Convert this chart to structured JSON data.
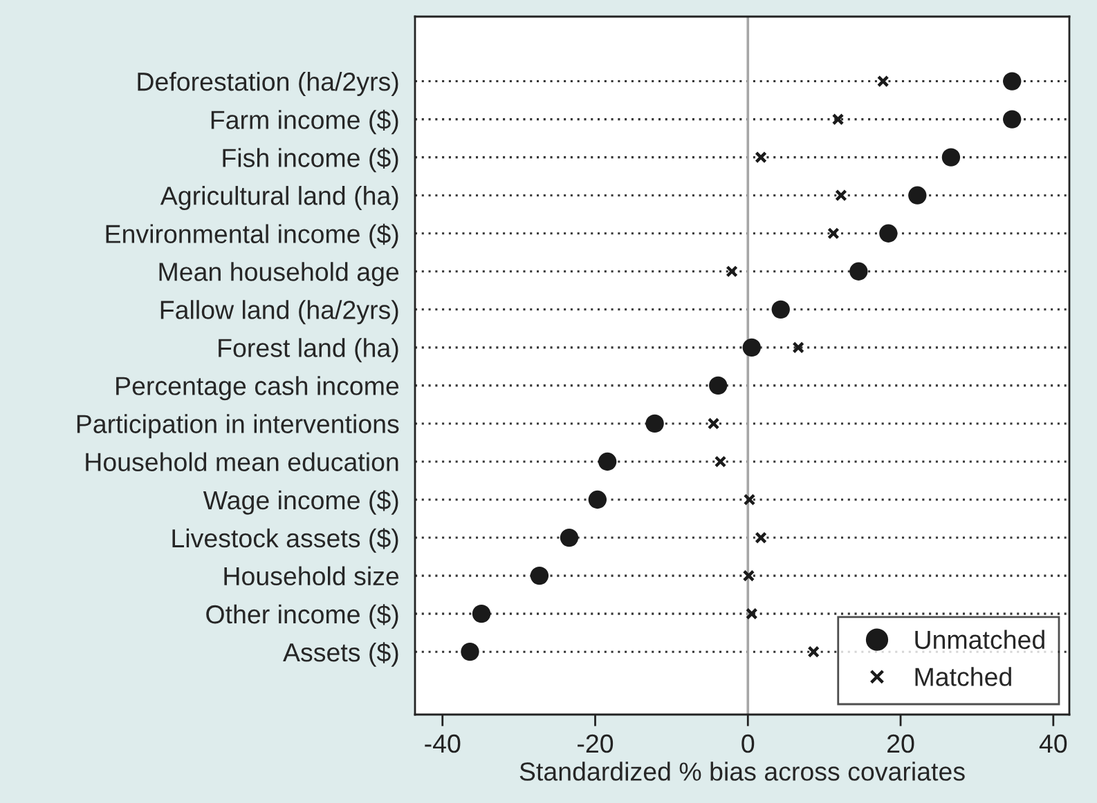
{
  "chart_data": {
    "type": "scatter",
    "orientation": "horizontal",
    "xlabel": "Standardized % bias across covariates",
    "categories": [
      "Deforestation (ha/2yrs)",
      "Farm income ($)",
      "Fish income ($)",
      "Agricultural land (ha)",
      "Environmental income ($)",
      "Mean household age",
      "Fallow land (ha/2yrs)",
      "Forest land (ha)",
      "Percentage cash income",
      "Participation in interventions",
      "Household mean education",
      "Wage income ($)",
      "Livestock assets ($)",
      "Household size",
      "Other income ($)",
      "Assets ($)"
    ],
    "series": [
      {
        "name": "Unmatched",
        "color": "#1a1a1a",
        "marker": "circle",
        "values": [
          34.6,
          34.6,
          26.6,
          22.2,
          18.4,
          14.5,
          4.3,
          0.5,
          -3.9,
          -12.2,
          -18.4,
          -19.7,
          -23.4,
          -27.3,
          -34.9,
          -36.4
        ]
      },
      {
        "name": "Matched",
        "color": "#1a1a1a",
        "marker": "cross",
        "values": [
          17.7,
          11.8,
          1.7,
          12.2,
          11.2,
          -2.1,
          null,
          6.6,
          null,
          -4.5,
          -3.6,
          0.2,
          1.7,
          0.1,
          0.5,
          8.6
        ]
      }
    ],
    "xlim": [
      -43.6,
      42.1
    ],
    "xticks": [
      {
        "value": -40,
        "label": "-40"
      },
      {
        "value": -20,
        "label": "-20"
      },
      0,
      20,
      40
    ],
    "ref_lines": [
      {
        "axis": "x",
        "value": 0,
        "color": "#a6a6a6"
      }
    ],
    "grid": "y",
    "legend": "bottom right"
  }
}
